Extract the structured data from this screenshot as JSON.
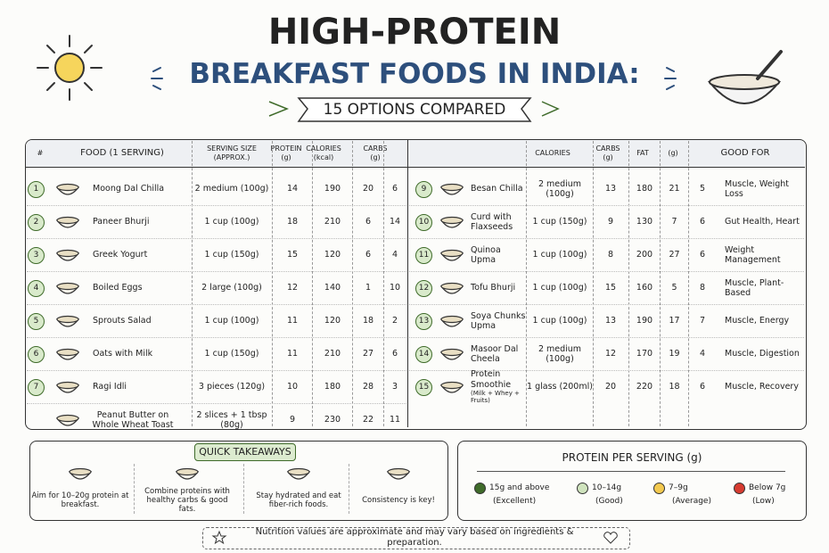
{
  "header": {
    "title": "HIGH-PROTEIN",
    "subtitle": "BREAKFAST FOODS IN INDIA:",
    "tagline": "15 OPTIONS COMPARED"
  },
  "table": {
    "left_columns": [
      "#",
      "FOOD (1 SERVING)",
      "SERVING SIZE (APPROX.)",
      "PROTEIN (g)",
      "CALORIES (kcal)",
      "CARBS (g)"
    ],
    "right_columns": [
      "CALORIES",
      "CARBS (g)",
      "FAT",
      "(g)",
      "GOOD FOR"
    ],
    "left_rows": [
      {
        "number": 1,
        "food": "Moong Dal Chilla",
        "serving": "2 medium (100g)",
        "values": [
          14,
          190,
          20,
          6
        ]
      },
      {
        "number": 2,
        "food": "Paneer Bhurji",
        "serving": "1 cup (100g)",
        "values": [
          18,
          210,
          6,
          14
        ]
      },
      {
        "number": 3,
        "food": "Greek Yogurt",
        "serving": "1 cup (150g)",
        "values": [
          15,
          120,
          6,
          4
        ]
      },
      {
        "number": 4,
        "food": "Boiled Eggs",
        "serving": "2 large (100g)",
        "values": [
          12,
          140,
          1,
          10
        ]
      },
      {
        "number": 5,
        "food": "Sprouts Salad",
        "serving": "1 cup (100g)",
        "values": [
          11,
          120,
          18,
          2
        ]
      },
      {
        "number": 6,
        "food": "Oats with Milk",
        "serving": "1 cup (150g)",
        "values": [
          11,
          210,
          27,
          6
        ]
      },
      {
        "number": 7,
        "food": "Ragi Idli",
        "serving": "3 pieces (120g)",
        "values": [
          10,
          180,
          28,
          3
        ]
      },
      {
        "food": "Peanut Butter on Whole Wheat Toast",
        "serving": "2 slices + 1 tbsp (80g)",
        "values": [
          9,
          230,
          22,
          11
        ]
      }
    ],
    "right_rows": [
      {
        "number": 9,
        "food": "Besan Chilla",
        "serving": "2 medium (100g)",
        "values": [
          13,
          180,
          21,
          5
        ],
        "good_for": "Muscle, Weight Loss"
      },
      {
        "number": 10,
        "food": "Curd with Flaxseeds",
        "serving": "1 cup (150g)",
        "values": [
          9,
          130,
          7,
          6
        ],
        "good_for": "Gut Health, Heart"
      },
      {
        "number": 11,
        "food": "Quinoa Upma",
        "serving": "1 cup (100g)",
        "values": [
          8,
          200,
          27,
          6
        ],
        "good_for": "Weight Management"
      },
      {
        "number": 12,
        "food": "Tofu Bhurji",
        "serving": "1 cup (100g)",
        "values": [
          15,
          160,
          5,
          8
        ],
        "good_for": "Muscle, Plant-Based"
      },
      {
        "number": 13,
        "food": "Soya Chunks Upma",
        "serving": "1 cup (100g)",
        "values": [
          13,
          190,
          17,
          7
        ],
        "good_for": "Muscle, Energy"
      },
      {
        "number": 14,
        "food": "Masoor Dal Cheela",
        "serving": "2 medium (100g)",
        "values": [
          12,
          170,
          19,
          4
        ],
        "good_for": "Muscle, Digestion"
      },
      {
        "number": 15,
        "food": "Protein Smoothie",
        "note": "(Milk + Whey + Fruits)",
        "serving": "1 glass (200ml)",
        "values": [
          20,
          220,
          18,
          6
        ],
        "good_for": "Muscle, Recovery"
      }
    ]
  },
  "takeaways": {
    "title": "QUICK TAKEAWAYS",
    "items": [
      "Aim for 10–20g protein at breakfast.",
      "Combine proteins with healthy carbs & good fats.",
      "Stay hydrated and eat fiber-rich foods.",
      "Consistency is key!"
    ]
  },
  "legend": {
    "title": "PROTEIN PER SERVING (g)",
    "items": [
      {
        "range": "15g and above",
        "label": "(Excellent)",
        "color": "#3f6b2a"
      },
      {
        "range": "10–14g",
        "label": "(Good)",
        "color": "#cfe3bd"
      },
      {
        "range": "7–9g",
        "label": "(Average)",
        "color": "#f3c94f"
      },
      {
        "range": "Below 7g",
        "label": "(Low)",
        "color": "#d63b30"
      }
    ]
  },
  "footer": "Nutrition values are approximate and may vary based on ingredients & preparation."
}
